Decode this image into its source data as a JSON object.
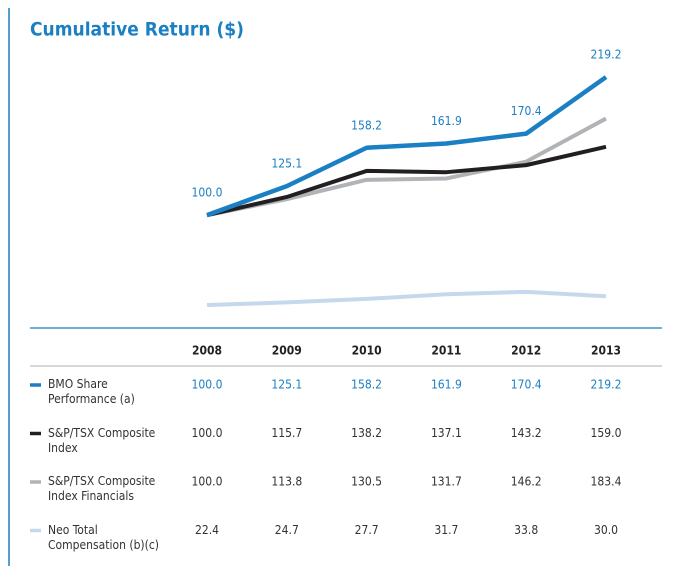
{
  "chart_data": {
    "type": "line",
    "title": "Cumulative Return ($)",
    "categories": [
      "2008",
      "2009",
      "2010",
      "2011",
      "2012",
      "2013"
    ],
    "ylim": [
      0,
      240
    ],
    "series": [
      {
        "name": "BMO Share Performance (a)",
        "color": "#1b7fc3",
        "values": [
          100.0,
          125.1,
          158.2,
          161.9,
          170.4,
          219.2
        ],
        "value_labels": [
          "100.0",
          "125.1",
          "158.2",
          "161.9",
          "170.4",
          "219.2"
        ]
      },
      {
        "name": "S&P/TSX Composite Index",
        "color": "#231f20",
        "values": [
          100.0,
          115.7,
          138.2,
          137.1,
          143.2,
          159.0
        ],
        "value_labels": [
          "100.0",
          "115.7",
          "138.2",
          "137.1",
          "143.2",
          "159.0"
        ]
      },
      {
        "name": "S&P/TSX Composite Index Financials",
        "color": "#b1b3b6",
        "values": [
          100.0,
          113.8,
          130.5,
          131.7,
          146.2,
          183.4
        ],
        "value_labels": [
          "100.0",
          "113.8",
          "130.5",
          "131.7",
          "146.2",
          "183.4"
        ]
      },
      {
        "name": "Neo Total Compensation (b)(c)",
        "color": "#c6d8ec",
        "values": [
          22.4,
          24.7,
          27.7,
          31.7,
          33.8,
          30.0
        ],
        "value_labels": [
          "22.4",
          "24.7",
          "27.7",
          "31.7",
          "33.8",
          "30.0"
        ]
      }
    ]
  }
}
